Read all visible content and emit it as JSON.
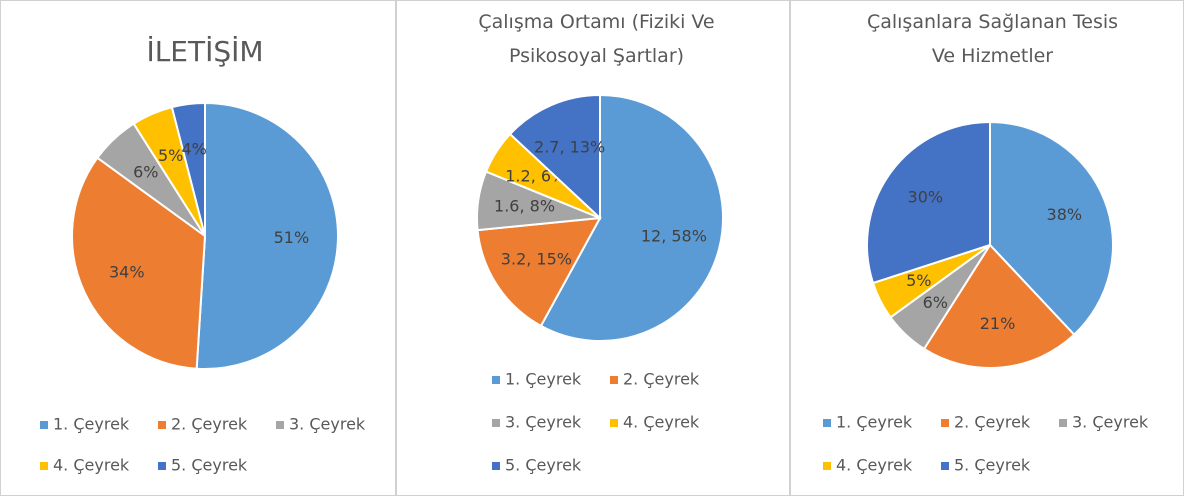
{
  "chart_data": [
    {
      "type": "pie",
      "title": "İLETİŞİM",
      "categories": [
        "1. Çeyrek",
        "2. Çeyrek",
        "3. Çeyrek",
        "4. Çeyrek",
        "5. Çeyrek"
      ],
      "values": [
        51,
        34,
        6,
        5,
        4
      ],
      "value_labels": [
        "51%",
        "34%",
        "6%",
        "5%",
        "4%"
      ],
      "colors": [
        "#5b9bd5",
        "#ed7d31",
        "#a5a5a5",
        "#ffc000",
        "#4472c4"
      ]
    },
    {
      "type": "pie",
      "title": "Çalışma Ortamı (Fiziki Ve Psikosoyal Şartlar)",
      "categories": [
        "1. Çeyrek",
        "2. Çeyrek",
        "3. Çeyrek",
        "4. Çeyrek",
        "5. Çeyrek"
      ],
      "values": [
        12,
        3.2,
        1.6,
        1.2,
        2.7
      ],
      "value_labels": [
        "12, 58%",
        "3.2, 15%",
        "1.6, 8%",
        "1.2, 6%",
        "2.7, 13%"
      ],
      "colors": [
        "#5b9bd5",
        "#ed7d31",
        "#a5a5a5",
        "#ffc000",
        "#4472c4"
      ]
    },
    {
      "type": "pie",
      "title": "Çalışanlara Sağlanan Tesis Ve Hizmetler",
      "categories": [
        "1. Çeyrek",
        "2. Çeyrek",
        "3. Çeyrek",
        "4. Çeyrek",
        "5. Çeyrek"
      ],
      "values": [
        38,
        21,
        6,
        5,
        30
      ],
      "value_labels": [
        "38%",
        "21%",
        "6%",
        "5%",
        "30%"
      ],
      "colors": [
        "#5b9bd5",
        "#ed7d31",
        "#a5a5a5",
        "#ffc000",
        "#4472c4"
      ]
    }
  ]
}
